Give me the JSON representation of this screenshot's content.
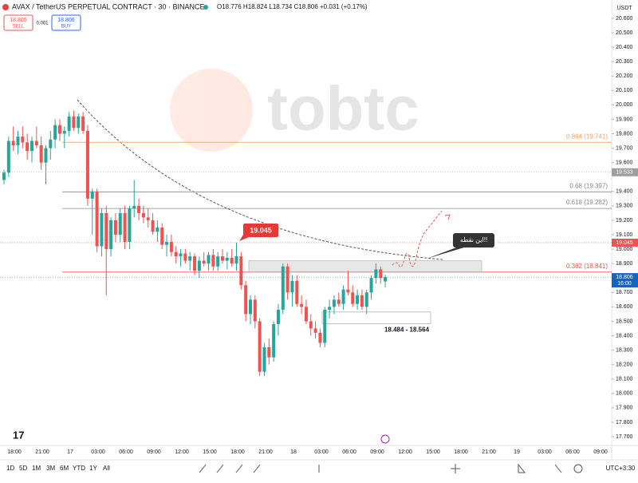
{
  "header": {
    "symbol": "AVAX / TetherUS PERPETUAL CONTRACT · 30 · BINANCE",
    "ohlc": "O18.776 H18.824 L18.734 C18.806 +0.031 (+0.17%)",
    "sell_price": "18.805",
    "sell": "SELL",
    "spread": "0.001",
    "buy_price": "18.806",
    "buy": "BUY"
  },
  "watermark": "tobtc",
  "toolbar": {
    "ranges": [
      "1D",
      "5D",
      "1M",
      "3M",
      "6M",
      "YTD",
      "1Y",
      "All"
    ],
    "timezone": "UTC+3:30"
  },
  "chart_data": {
    "type": "candlestick",
    "currency": "USDT",
    "up_color": "#26a69a",
    "down_color": "#ef5350",
    "x_labels": [
      "18:00",
      "21:00",
      "17",
      "03:00",
      "06:00",
      "09:00",
      "12:00",
      "15:00",
      "18:00",
      "21:00",
      "18",
      "03:00",
      "06:00",
      "09:00",
      "12:00",
      "15:00",
      "18:00",
      "21:00",
      "19",
      "03:00",
      "06:00",
      "09:00"
    ],
    "ylim": [
      17.628,
      20.727
    ],
    "yticks": [
      {
        "value": 20.6,
        "label": "20.600"
      },
      {
        "value": 20.5,
        "label": "20.500"
      },
      {
        "value": 20.4,
        "label": "20.400"
      },
      {
        "value": 20.3,
        "label": "20.300"
      },
      {
        "value": 20.2,
        "label": "20.200"
      },
      {
        "value": 20.1,
        "label": "20.100"
      },
      {
        "value": 20.0,
        "label": "20.000"
      },
      {
        "value": 19.9,
        "label": "19.900"
      },
      {
        "value": 19.8,
        "label": "19.800"
      },
      {
        "value": 19.7,
        "label": "19.700"
      },
      {
        "value": 19.6,
        "label": "19.600"
      },
      {
        "value": 19.4,
        "label": "19.400"
      },
      {
        "value": 19.3,
        "label": "19.300"
      },
      {
        "value": 19.2,
        "label": "19.200"
      },
      {
        "value": 19.1,
        "label": "19.100"
      },
      {
        "value": 19.0,
        "label": "19.000"
      },
      {
        "value": 18.9,
        "label": "18.900"
      },
      {
        "value": 18.7,
        "label": "18.700"
      },
      {
        "value": 18.6,
        "label": "18.600"
      },
      {
        "value": 18.5,
        "label": "18.500"
      },
      {
        "value": 18.4,
        "label": "18.400"
      },
      {
        "value": 18.3,
        "label": "18.300"
      },
      {
        "value": 18.2,
        "label": "18.200"
      },
      {
        "value": 18.1,
        "label": "18.100"
      },
      {
        "value": 18.0,
        "label": "18.000"
      },
      {
        "value": 17.9,
        "label": "17.900"
      },
      {
        "value": 17.8,
        "label": "17.800"
      },
      {
        "value": 17.7,
        "label": "17.700"
      }
    ],
    "open": [
      19.48,
      19.53,
      19.75,
      19.72,
      19.78,
      19.74,
      19.68,
      19.75,
      19.72,
      19.6,
      19.7,
      19.76,
      19.86,
      19.8,
      19.82,
      19.92,
      19.84,
      19.92,
      19.82,
      19.35,
      19.4,
      19.02,
      19.25,
      19.0,
      19.2,
      19.1,
      19.25,
      19.05,
      19.28,
      19.3,
      19.25,
      19.22,
      19.2,
      19.12,
      19.15,
      19.03,
      19.05,
      18.98,
      18.95,
      18.97,
      18.92,
      18.95,
      18.85,
      18.92,
      18.9,
      18.96,
      18.88,
      18.95,
      18.92,
      18.94,
      18.9,
      18.95,
      18.75,
      18.55,
      18.65,
      18.5,
      18.15,
      18.32,
      18.25,
      18.48,
      18.58,
      18.88,
      18.7,
      18.78,
      18.62,
      18.6,
      18.5,
      18.45,
      18.42,
      18.35,
      18.58,
      18.6,
      18.65,
      18.62,
      18.72,
      18.7,
      18.62,
      18.68,
      18.6,
      18.7,
      18.8,
      18.86,
      18.776
    ],
    "high": [
      19.55,
      19.78,
      19.85,
      19.82,
      19.85,
      19.8,
      19.78,
      19.85,
      19.78,
      19.72,
      19.82,
      19.9,
      19.9,
      19.85,
      19.95,
      19.96,
      19.94,
      19.95,
      19.86,
      19.42,
      19.42,
      19.28,
      19.3,
      19.22,
      19.25,
      19.28,
      19.3,
      19.3,
      19.48,
      19.35,
      19.3,
      19.28,
      19.25,
      19.2,
      19.18,
      19.1,
      19.1,
      19.02,
      19.0,
      19.0,
      18.98,
      18.97,
      18.95,
      18.98,
      18.98,
      19.0,
      18.98,
      19.0,
      18.98,
      19.0,
      19.045,
      18.98,
      18.78,
      18.68,
      18.68,
      18.52,
      18.35,
      18.38,
      18.5,
      18.62,
      18.9,
      18.9,
      18.82,
      18.82,
      18.68,
      18.65,
      18.55,
      18.5,
      18.45,
      18.6,
      18.65,
      18.68,
      18.7,
      18.75,
      18.85,
      18.75,
      18.72,
      18.72,
      18.72,
      18.82,
      18.9,
      18.88,
      18.824
    ],
    "low": [
      19.45,
      19.5,
      19.68,
      19.66,
      19.7,
      19.62,
      19.6,
      19.7,
      19.55,
      19.45,
      19.62,
      19.7,
      19.75,
      19.7,
      19.78,
      19.82,
      19.8,
      19.8,
      19.3,
      19.1,
      18.98,
      18.95,
      18.68,
      18.95,
      19.05,
      19.05,
      19.0,
      19.0,
      19.22,
      19.2,
      19.18,
      19.15,
      19.1,
      19.05,
      19.0,
      18.95,
      18.95,
      18.9,
      18.88,
      18.9,
      18.85,
      18.82,
      18.8,
      18.88,
      18.85,
      18.85,
      18.85,
      18.9,
      18.86,
      18.88,
      18.85,
      18.72,
      18.5,
      18.48,
      18.45,
      18.12,
      18.12,
      18.2,
      18.22,
      18.4,
      18.55,
      18.65,
      18.6,
      18.6,
      18.55,
      18.48,
      18.4,
      18.38,
      18.32,
      18.32,
      18.52,
      18.55,
      18.6,
      18.58,
      18.68,
      18.6,
      18.58,
      18.58,
      18.55,
      18.65,
      18.76,
      18.76,
      18.734
    ],
    "close": [
      19.53,
      19.75,
      19.72,
      19.78,
      19.74,
      19.68,
      19.75,
      19.72,
      19.6,
      19.7,
      19.76,
      19.86,
      19.8,
      19.82,
      19.92,
      19.84,
      19.92,
      19.82,
      19.35,
      19.4,
      19.02,
      19.25,
      19.0,
      19.2,
      19.1,
      19.25,
      19.05,
      19.28,
      19.3,
      19.25,
      19.22,
      19.2,
      19.12,
      19.15,
      19.03,
      19.05,
      18.98,
      18.95,
      18.97,
      18.92,
      18.95,
      18.85,
      18.92,
      18.9,
      18.96,
      18.88,
      18.95,
      18.92,
      18.94,
      18.9,
      18.95,
      18.75,
      18.55,
      18.65,
      18.5,
      18.15,
      18.32,
      18.25,
      18.48,
      18.58,
      18.88,
      18.7,
      18.78,
      18.62,
      18.6,
      18.5,
      18.45,
      18.42,
      18.35,
      18.58,
      18.6,
      18.65,
      18.62,
      18.72,
      18.7,
      18.62,
      18.68,
      18.6,
      18.7,
      18.8,
      18.86,
      18.8,
      18.806
    ],
    "fib_levels": [
      {
        "value": 19.741,
        "label": "0.864 (19.741)",
        "color": "#f7a35c"
      },
      {
        "value": 19.397,
        "label": "0.68 (19.397)",
        "color": "#888888"
      },
      {
        "value": 19.282,
        "label": "0.618 (19.282)",
        "color": "#888888"
      },
      {
        "value": 18.841,
        "label": "0.382 (18.841)",
        "color": "#ef5350"
      }
    ],
    "price_tags": [
      {
        "value": 19.533,
        "color": "#9e9e9e"
      },
      {
        "value": 19.045,
        "color": "#ef5350"
      },
      {
        "value": 18.806,
        "color": "#1565c0",
        "countdown": "16:00"
      }
    ],
    "zone": {
      "high": 18.92,
      "low": 18.84
    },
    "target_box": {
      "label": "18.484 - 18.564",
      "low": 18.484,
      "high": 18.564
    },
    "callouts": {
      "peak": "19.045",
      "point": "این نقطه!!"
    }
  }
}
